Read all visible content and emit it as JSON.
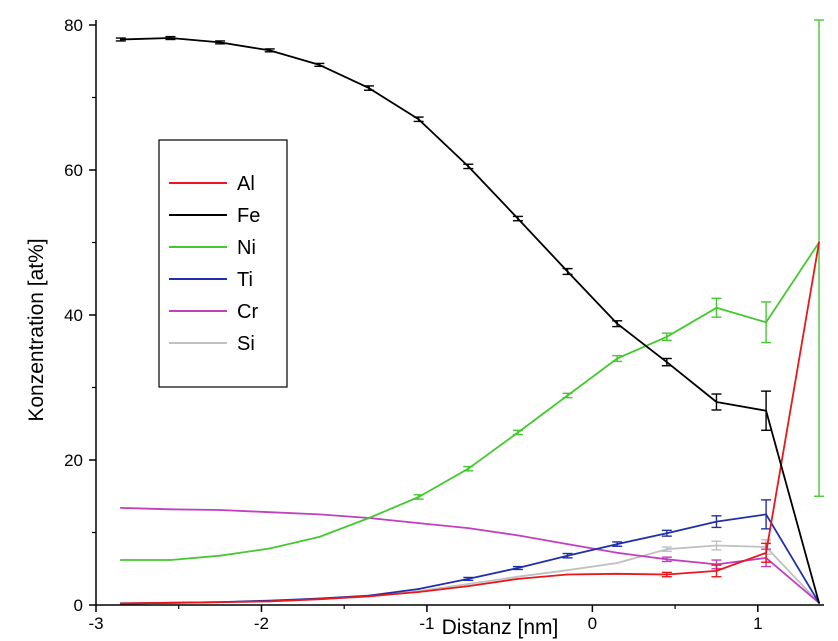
{
  "chart_data": {
    "type": "line",
    "xlabel": "Distanz [nm]",
    "ylabel": "Konzentration [at%]",
    "xlim": [
      -3,
      1.4
    ],
    "ylim": [
      0,
      80
    ],
    "x_ticks": [
      "-3",
      "-2",
      "-1",
      "0",
      "1"
    ],
    "y_ticks": [
      "0",
      "20",
      "40",
      "60",
      "80"
    ],
    "grid": false,
    "legend_position": "left",
    "x": [
      -2.85,
      -2.55,
      -2.25,
      -1.95,
      -1.65,
      -1.35,
      -1.05,
      -0.75,
      -0.45,
      -0.15,
      0.15,
      0.45,
      0.75,
      1.05,
      1.37
    ],
    "series": [
      {
        "name": "Al",
        "color": "#e8181c",
        "values": [
          0.2,
          0.3,
          0.4,
          0.5,
          0.8,
          1.2,
          1.8,
          2.6,
          3.6,
          4.2,
          4.3,
          4.2,
          4.7,
          7.2,
          50
        ],
        "errors": [
          0,
          0,
          0,
          0,
          0,
          0,
          0,
          0,
          0,
          0,
          0,
          0.3,
          0.8,
          1.3,
          0
        ]
      },
      {
        "name": "Fe",
        "color": "#000000",
        "values": [
          78,
          78.2,
          77.6,
          76.5,
          74.5,
          71.3,
          67,
          60.5,
          53.3,
          46,
          38.8,
          33.5,
          28,
          26.8,
          0.3
        ],
        "errors": [
          0.2,
          0.2,
          0.2,
          0.2,
          0.2,
          0.3,
          0.3,
          0.3,
          0.3,
          0.4,
          0.4,
          0.5,
          1.1,
          2.7,
          0
        ]
      },
      {
        "name": "Ni",
        "color": "#46c832",
        "values": [
          6.2,
          6.2,
          6.8,
          7.8,
          9.4,
          12,
          14.9,
          18.8,
          23.8,
          28.9,
          34,
          37,
          41,
          39,
          50
        ],
        "errors": [
          0,
          0,
          0,
          0,
          0,
          0,
          0.3,
          0.3,
          0.3,
          0.3,
          0.4,
          0.5,
          1.3,
          2.8,
          35
        ]
      },
      {
        "name": "Ti",
        "color": "#2230a8",
        "values": [
          0.2,
          0.3,
          0.4,
          0.6,
          0.9,
          1.3,
          2.2,
          3.6,
          5.1,
          6.8,
          8.4,
          9.9,
          11.5,
          12.5,
          0.3
        ],
        "errors": [
          0,
          0,
          0,
          0,
          0,
          0,
          0,
          0.2,
          0.2,
          0.3,
          0.3,
          0.4,
          0.8,
          2,
          0
        ]
      },
      {
        "name": "Cr",
        "color": "#c040c0",
        "values": [
          13.4,
          13.2,
          13.1,
          12.8,
          12.5,
          12,
          11.3,
          10.6,
          9.6,
          8.4,
          7.2,
          6.3,
          5.6,
          6.5,
          0.3
        ],
        "errors": [
          0,
          0,
          0,
          0,
          0,
          0,
          0,
          0,
          0,
          0,
          0,
          0.3,
          0.6,
          1.2,
          0
        ]
      },
      {
        "name": "Si",
        "color": "#c0c0c0",
        "values": [
          0.3,
          0.3,
          0.4,
          0.5,
          0.8,
          1.2,
          1.9,
          2.9,
          3.9,
          4.8,
          5.8,
          7.7,
          8.2,
          8,
          0.3
        ],
        "errors": [
          0,
          0,
          0,
          0,
          0,
          0,
          0,
          0,
          0,
          0,
          0,
          0.3,
          0.6,
          1,
          0
        ]
      }
    ]
  }
}
